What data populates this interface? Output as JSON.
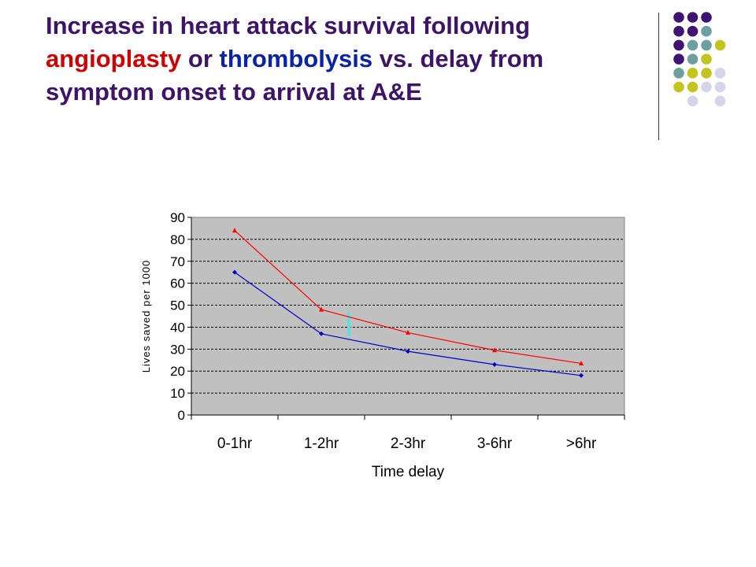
{
  "slide": {
    "title_segments": [
      {
        "text": "Increase in heart attack survival following ",
        "color": "#3d1466"
      },
      {
        "text": "angioplasty",
        "color": "#cc0000"
      },
      {
        "text": " or ",
        "color": "#3d1466"
      },
      {
        "text": "thrombolysis",
        "color": "#0a22a6"
      },
      {
        "text": " vs. delay from symptom onset to arrival at A&E",
        "color": "#3d1466"
      }
    ],
    "palette": {
      "purple": "#3f1470",
      "teal": "#6d9fa0",
      "olive": "#c4c420",
      "lavender": "#d5d5ea"
    },
    "dot_grid": [
      [
        "purple",
        "purple",
        "purple",
        null
      ],
      [
        "purple",
        "purple",
        "teal",
        null
      ],
      [
        "purple",
        "teal",
        "teal",
        "olive"
      ],
      [
        "purple",
        "teal",
        "olive",
        null
      ],
      [
        "teal",
        "olive",
        "olive",
        "lavender"
      ],
      [
        "olive",
        "olive",
        "lavender",
        "lavender"
      ],
      [
        null,
        "lavender",
        null,
        "lavender"
      ]
    ]
  },
  "chart_data": {
    "type": "line",
    "categories": [
      "0-1hr",
      "1-2hr",
      "2-3hr",
      "3-6hr",
      ">6hr"
    ],
    "series": [
      {
        "color": "#ff0000",
        "marker": "triangle",
        "values": [
          84,
          48,
          37.5,
          29.5,
          23.5
        ]
      },
      {
        "color": "#0000cc",
        "marker": "diamond",
        "values": [
          65,
          37,
          29,
          23,
          18
        ]
      }
    ],
    "highlight_bar": {
      "x_between": [
        "1-2hr",
        "2-3hr"
      ],
      "y_range": [
        36,
        47
      ],
      "color": "#66dddd"
    },
    "xlabel": "Time delay",
    "ylabel": "Lives saved per 1000",
    "ylim": [
      0,
      90
    ],
    "yticks": [
      0,
      10,
      20,
      30,
      40,
      50,
      60,
      70,
      80,
      90
    ],
    "plot_background": "#c0c0c0",
    "grid": "dashed horizontal"
  }
}
